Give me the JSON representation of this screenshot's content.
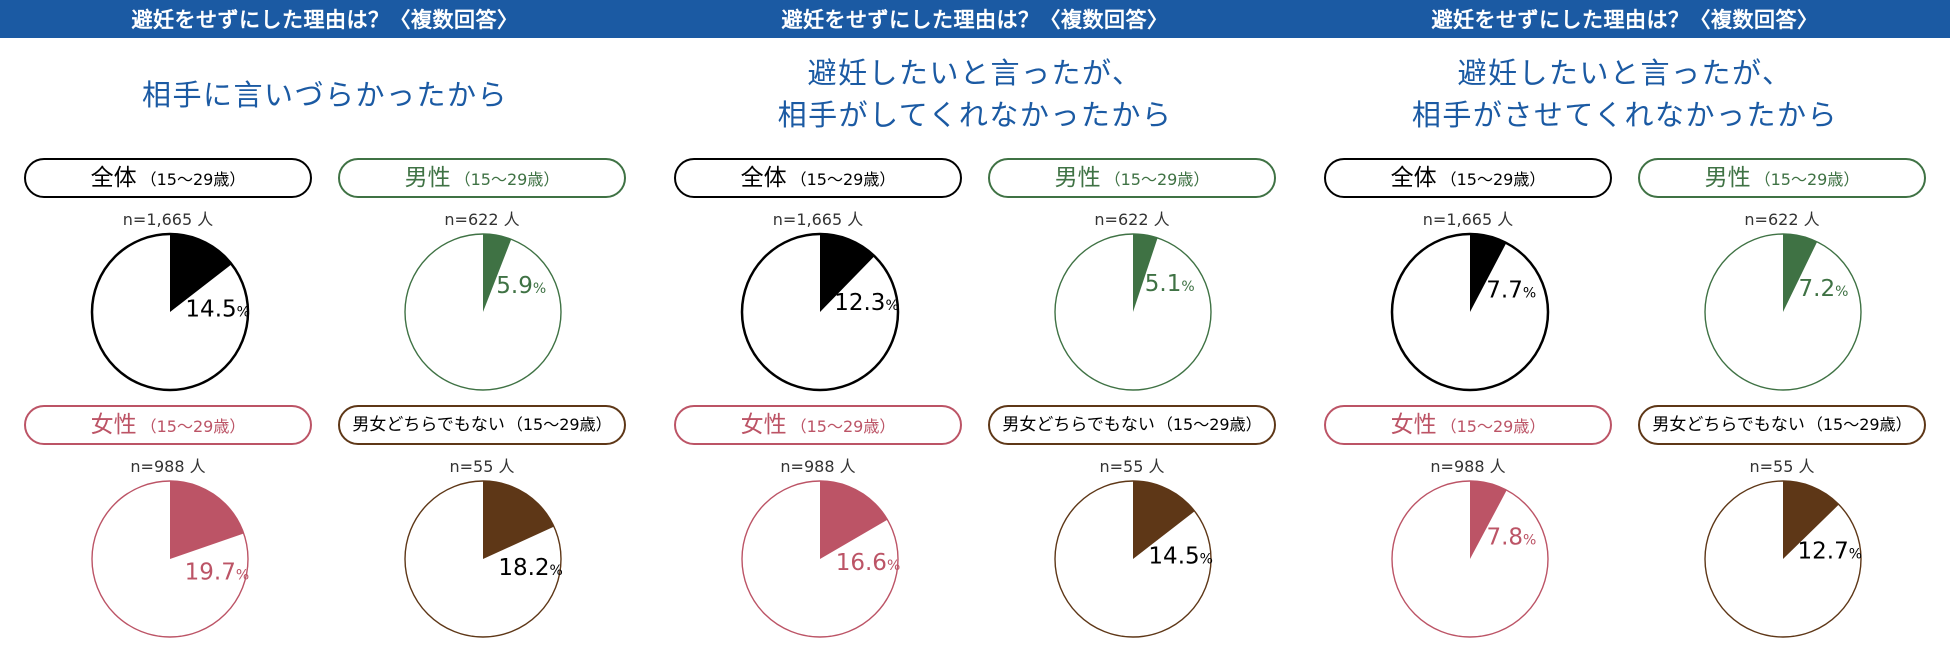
{
  "header_text": "避妊をせずにした理由は？〈複数回答〉",
  "colors": {
    "header_bg": "#1b5aa3",
    "subtitle": "#1b5aa3",
    "all": "#000000",
    "male": "#3f7244",
    "female": "#bc5466",
    "neither": "#5e3717"
  },
  "groups": [
    {
      "key": "all",
      "label": "全体",
      "age": "（15〜29歳）",
      "n": "n=1,665 人",
      "color_key": "all",
      "small": false
    },
    {
      "key": "male",
      "label": "男性",
      "age": "（15〜29歳）",
      "n": "n=622 人",
      "color_key": "male",
      "small": false
    },
    {
      "key": "female",
      "label": "女性",
      "age": "（15〜29歳）",
      "n": "n=988 人",
      "color_key": "female",
      "small": false
    },
    {
      "key": "neither",
      "label": "男女どちらでもない",
      "age": "（15〜29歳）",
      "n": "n=55 人",
      "color_key": "neither",
      "small": true
    }
  ],
  "pct_symbol": "%",
  "chart_data": [
    {
      "type": "pie",
      "title": "避妊をせずにした理由は？〈複数回答〉",
      "subtitle_lines": [
        "相手に言いづらかったから"
      ],
      "series": [
        {
          "group": "全体（15〜29歳）",
          "n": 1665,
          "value": 14.5
        },
        {
          "group": "男性（15〜29歳）",
          "n": 622,
          "value": 5.9
        },
        {
          "group": "女性（15〜29歳）",
          "n": 988,
          "value": 19.7
        },
        {
          "group": "男女どちらでもない（15〜29歳）",
          "n": 55,
          "value": 18.2
        }
      ]
    },
    {
      "type": "pie",
      "title": "避妊をせずにした理由は？〈複数回答〉",
      "subtitle_lines": [
        "避妊したいと言ったが、",
        "相手がしてくれなかったから"
      ],
      "series": [
        {
          "group": "全体（15〜29歳）",
          "n": 1665,
          "value": 12.3
        },
        {
          "group": "男性（15〜29歳）",
          "n": 622,
          "value": 5.1
        },
        {
          "group": "女性（15〜29歳）",
          "n": 988,
          "value": 16.6
        },
        {
          "group": "男女どちらでもない（15〜29歳）",
          "n": 55,
          "value": 14.5
        }
      ]
    },
    {
      "type": "pie",
      "title": "避妊をせずにした理由は？〈複数回答〉",
      "subtitle_lines": [
        "避妊したいと言ったが、",
        "相手がさせてくれなかったから"
      ],
      "series": [
        {
          "group": "全体（15〜29歳）",
          "n": 1665,
          "value": 7.7
        },
        {
          "group": "男性（15〜29歳）",
          "n": 622,
          "value": 7.2
        },
        {
          "group": "女性（15〜29歳）",
          "n": 988,
          "value": 7.8
        },
        {
          "group": "男女どちらでもない（15〜29歳）",
          "n": 55,
          "value": 12.7
        }
      ]
    }
  ]
}
